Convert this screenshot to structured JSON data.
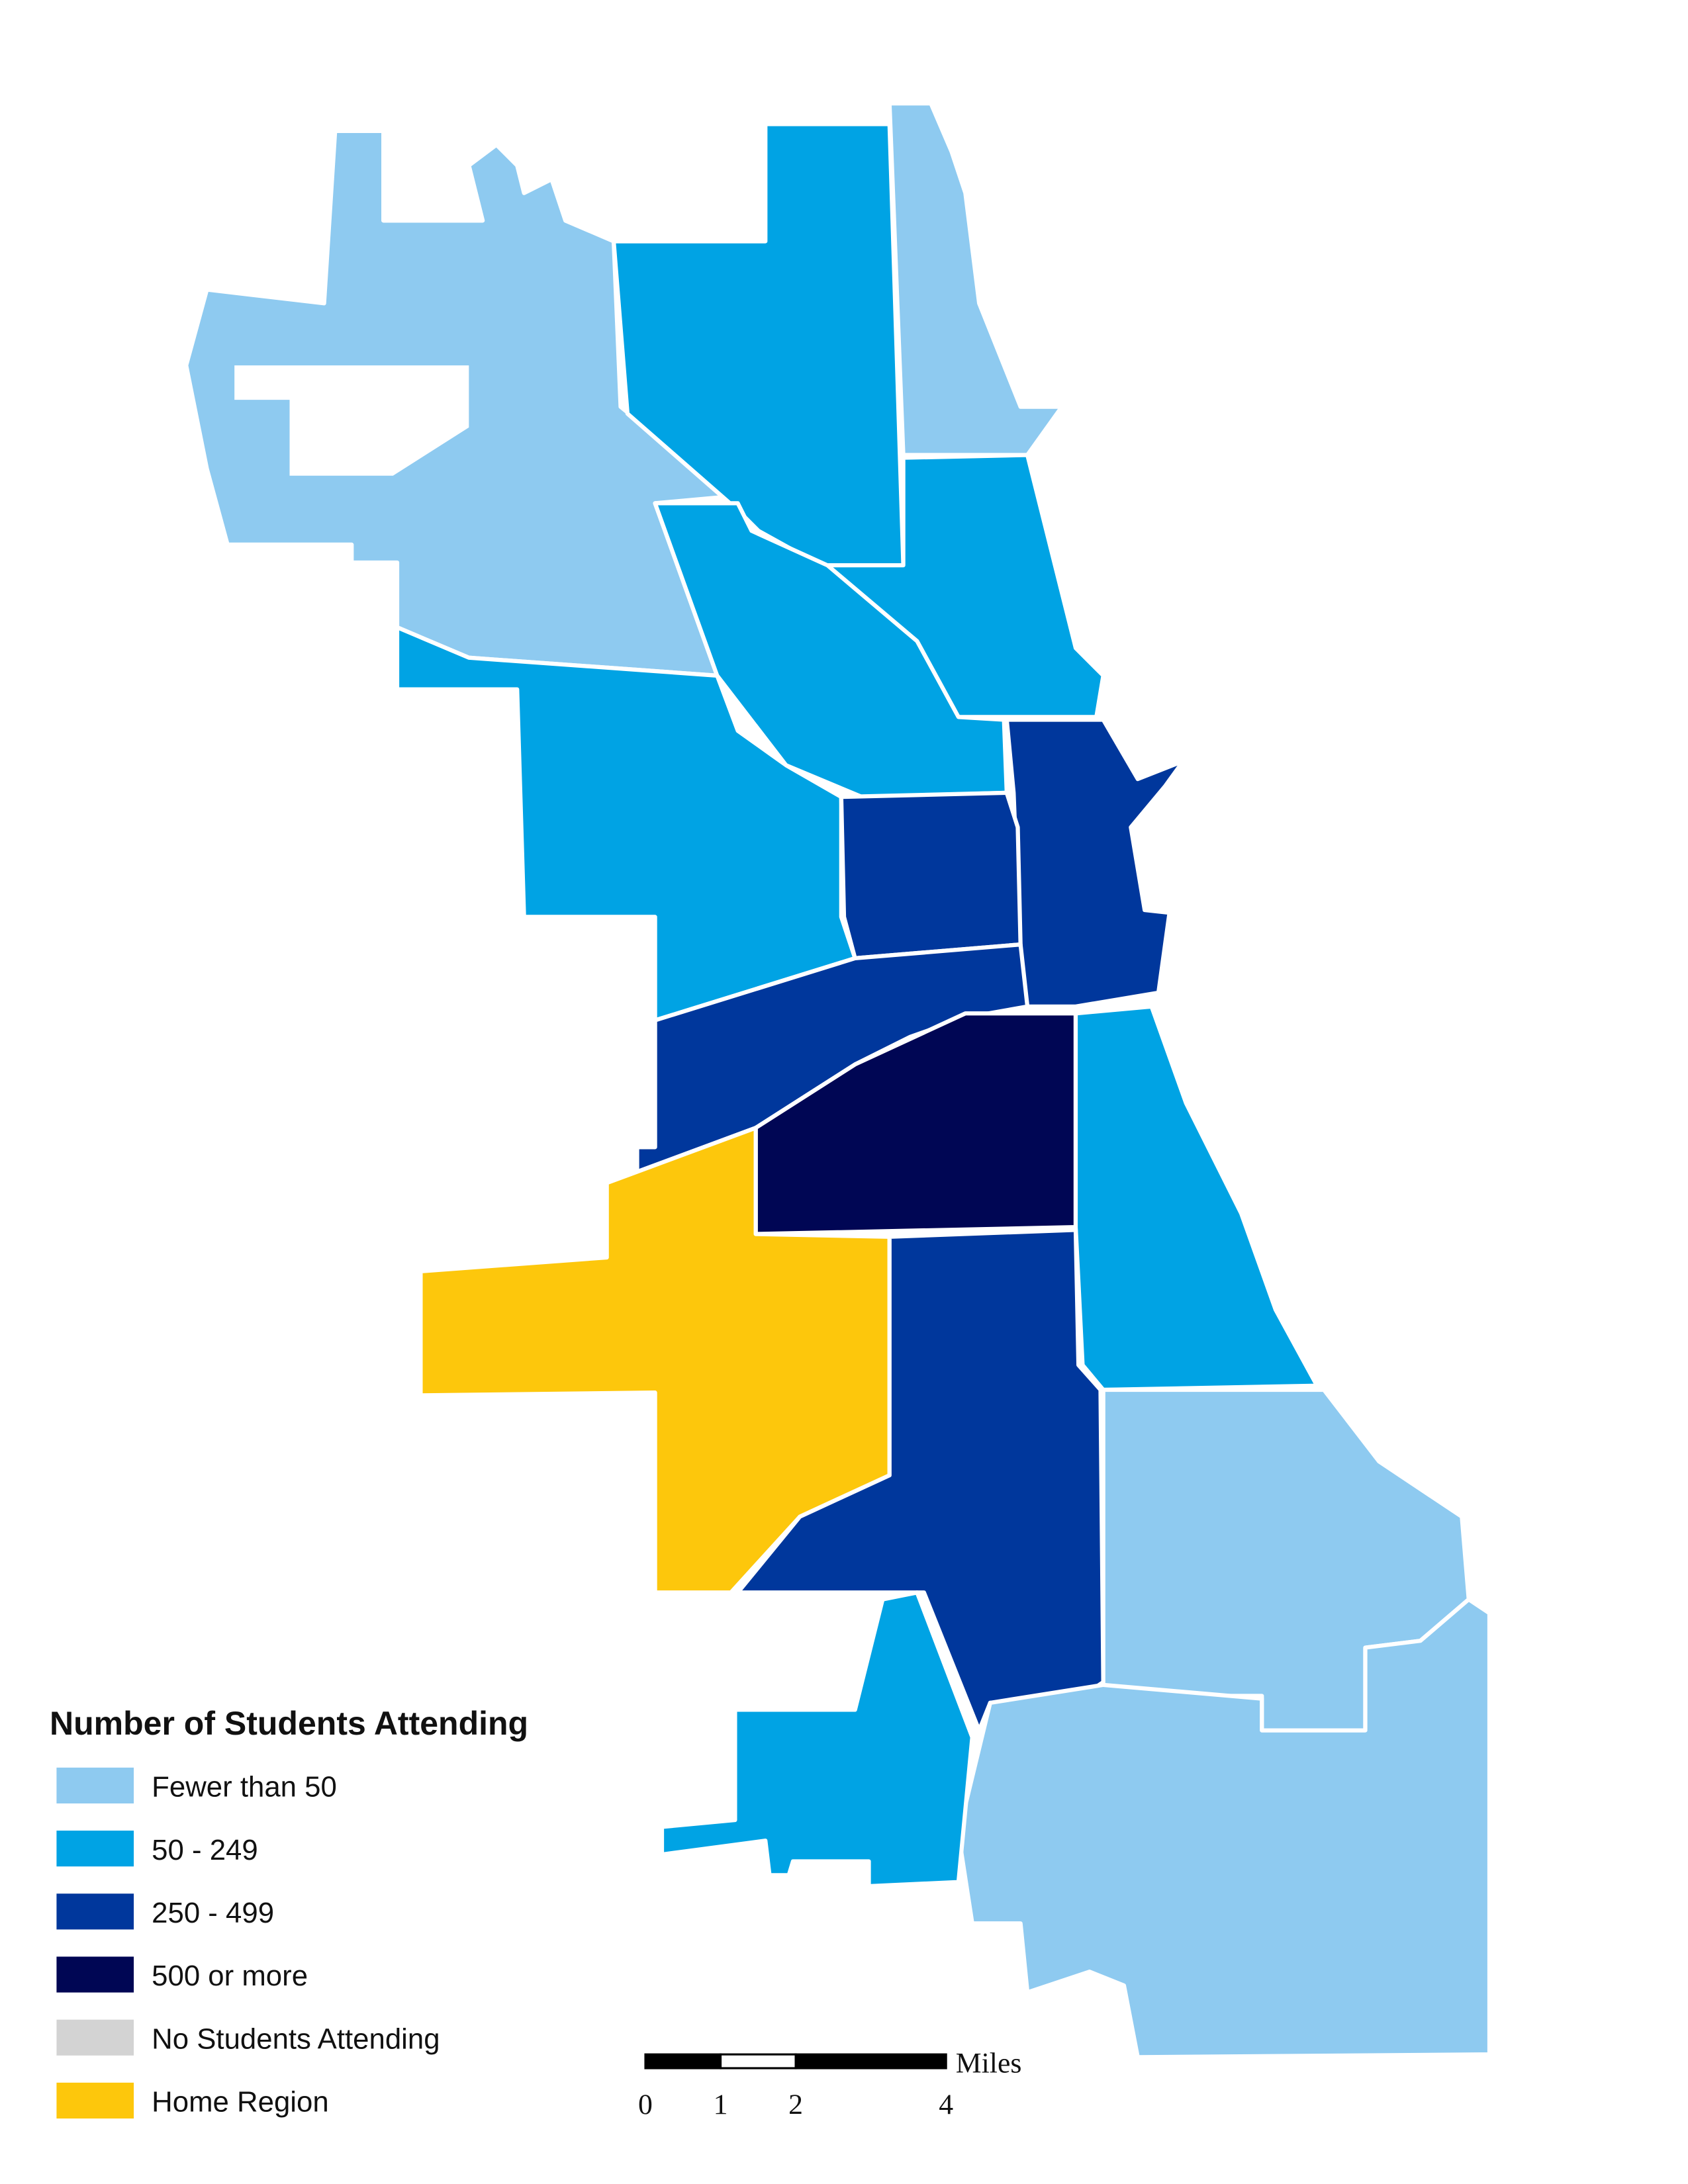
{
  "legend": {
    "title": "Number of Students Attending",
    "items": [
      {
        "label": "Fewer than 50",
        "color": "#8ecaf0"
      },
      {
        "label": "50 - 249",
        "color": "#00a3e4"
      },
      {
        "label": "250 - 499",
        "color": "#00379c"
      },
      {
        "label": "500 or more",
        "color": "#000654"
      },
      {
        "label": "No Students Attending",
        "color": "#d3d3d3"
      },
      {
        "label": "Home Region",
        "color": "#fdc70c"
      }
    ]
  },
  "scale_bar": {
    "unit": "Miles",
    "ticks": [
      0,
      1,
      2,
      4
    ]
  }
}
